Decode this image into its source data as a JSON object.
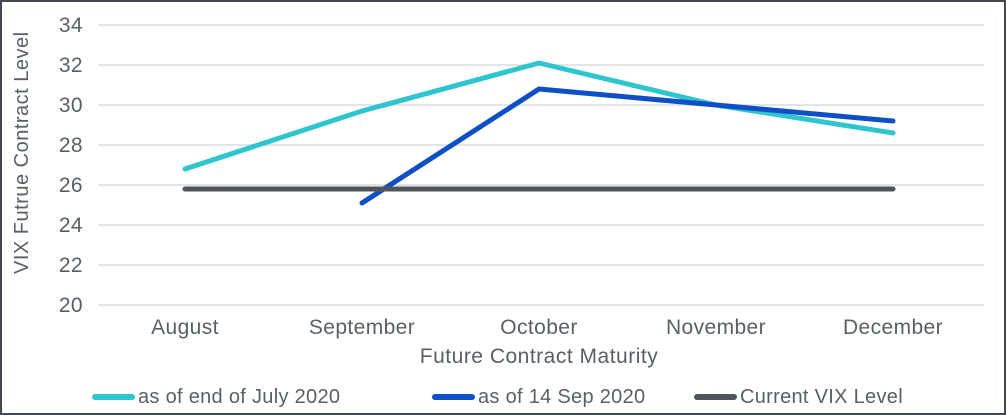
{
  "chart_data": {
    "type": "line",
    "categories": [
      "August",
      "September",
      "October",
      "November",
      "December"
    ],
    "series": [
      {
        "name": "as of end of July 2020",
        "color": "#2FC5CE",
        "values": [
          26.8,
          29.7,
          32.1,
          30.0,
          28.6
        ]
      },
      {
        "name": "as of 14 Sep 2020",
        "color": "#0F4FC5",
        "values": [
          null,
          25.1,
          30.8,
          30.0,
          29.2
        ]
      },
      {
        "name": "Current VIX Level",
        "color": "#4F555A",
        "values": [
          25.8,
          25.8,
          25.8,
          25.8,
          25.8
        ]
      }
    ],
    "title": "",
    "xlabel": "Future Contract Maturity",
    "ylabel": "VIX Futrue Contract Level",
    "ylim": [
      20,
      34
    ],
    "yticks": [
      20,
      22,
      24,
      26,
      28,
      30,
      32,
      34
    ],
    "grid": true,
    "legend_position": "bottom"
  },
  "colors": {
    "grid_line": "#E2E5E7",
    "axis_text": "#596065",
    "frame_border": "#43494E",
    "background": "#FFFFFF"
  }
}
